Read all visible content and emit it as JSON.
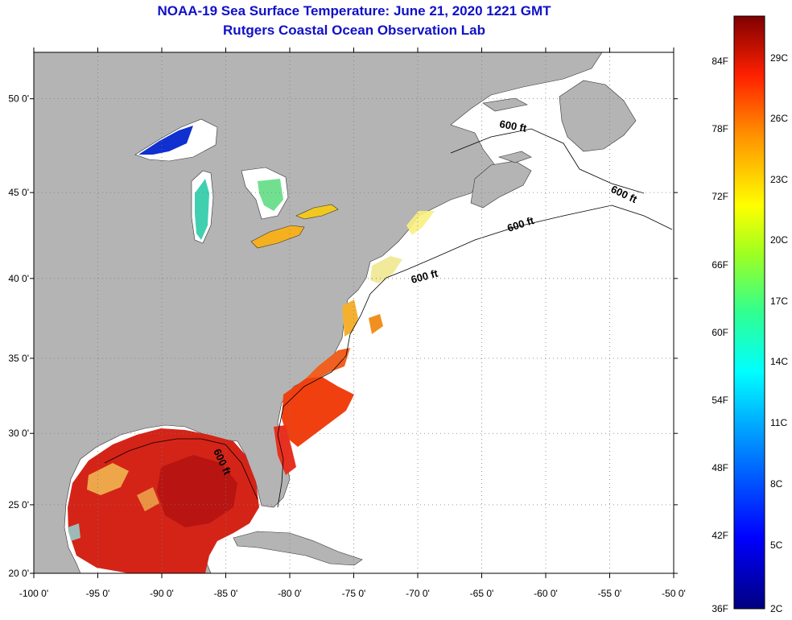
{
  "title": {
    "line1": "NOAA-19 Sea Surface Temperature:  June 21, 2020 1221 GMT",
    "line2": "Rutgers Coastal Ocean Observation Lab"
  },
  "map": {
    "lat_labels": [
      "50 0'",
      "45 0'",
      "40 0'",
      "35 0'",
      "30 0'",
      "25 0'",
      "20 0'"
    ],
    "lat_values": [
      50,
      45,
      40,
      35,
      30,
      25,
      20
    ],
    "lon_labels": [
      "-100 0'",
      "-95 0'",
      "-90 0'",
      "-85 0'",
      "-80 0'",
      "-75 0'",
      "-70 0'",
      "-65 0'",
      "-60 0'",
      "-55 0'",
      "-50 0'"
    ],
    "lon_values": [
      -100,
      -95,
      -90,
      -85,
      -80,
      -75,
      -70,
      -65,
      -60,
      -55,
      -50
    ],
    "isobath_labels": [
      "600 ft",
      "600 ft",
      "600 ft",
      "600 ft",
      "600 ft"
    ],
    "colors": {
      "land": "#b4b4b4",
      "ocean": "#ffffff",
      "grid": "#7a7a7a"
    }
  },
  "colorbar": {
    "fahrenheit_labels": [
      "84F",
      "78F",
      "72F",
      "66F",
      "60F",
      "54F",
      "48F",
      "42F",
      "36F"
    ],
    "celsius_labels": [
      "29C",
      "26C",
      "23C",
      "20C",
      "17C",
      "14C",
      "11C",
      "8C",
      "5C",
      "2C"
    ]
  }
}
